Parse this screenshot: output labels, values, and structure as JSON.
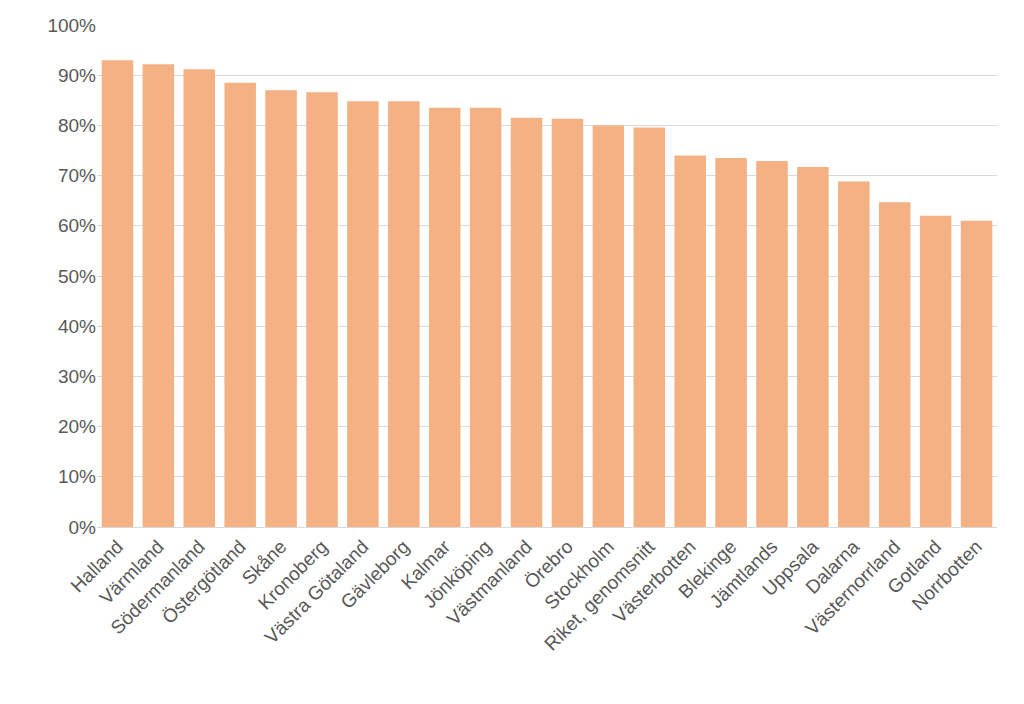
{
  "chart_data": {
    "type": "bar",
    "categories": [
      "Halland",
      "Värmland",
      "Södermanland",
      "Östergötland",
      "Skåne",
      "Kronoberg",
      "Västra Götaland",
      "Gävleborg",
      "Kalmar",
      "Jönköping",
      "Västmanland",
      "Örebro",
      "Stockholm",
      "Riket, genomsnitt",
      "Västerbotten",
      "Blekinge",
      "Jämtlands",
      "Uppsala",
      "Dalarna",
      "Västernorrland",
      "Gotland",
      "Norrbotten"
    ],
    "values": [
      93,
      92.2,
      91.2,
      88.5,
      87,
      86.6,
      84.8,
      84.8,
      83.5,
      83.5,
      81.5,
      81.3,
      80,
      79.6,
      74,
      73.5,
      72.9,
      71.7,
      68.8,
      64.7,
      62,
      61
    ],
    "color": "#f4b183",
    "ylim": [
      0,
      100
    ],
    "yticks": [
      {
        "value": 0,
        "label": "0%"
      },
      {
        "value": 10,
        "label": "10%"
      },
      {
        "value": 20,
        "label": "20%"
      },
      {
        "value": 30,
        "label": "30%"
      },
      {
        "value": 40,
        "label": "40%"
      },
      {
        "value": 50,
        "label": "50%"
      },
      {
        "value": 60,
        "label": "60%"
      },
      {
        "value": 70,
        "label": "70%"
      },
      {
        "value": 80,
        "label": "80%"
      },
      {
        "value": 90,
        "label": "90%"
      },
      {
        "value": 100,
        "label": "100%"
      }
    ],
    "grid": true
  }
}
